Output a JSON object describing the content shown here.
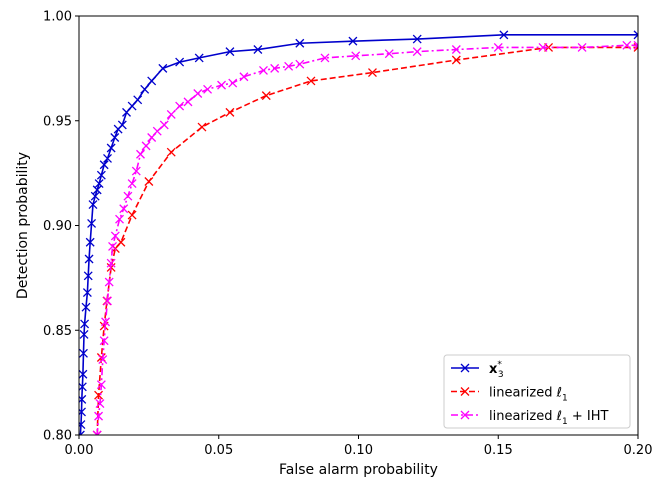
{
  "chart_data": {
    "type": "line",
    "xlabel": "False alarm probability",
    "ylabel": "Detection probability",
    "xlim": [
      0,
      0.2
    ],
    "ylim": [
      0.8,
      1.0
    ],
    "xticks": [
      "0.00",
      "0.05",
      "0.10",
      "0.15",
      "0.20"
    ],
    "yticks": [
      "0.80",
      "0.85",
      "0.90",
      "0.95",
      "1.00"
    ],
    "grid": false,
    "legend_position": "bottom-right",
    "series": [
      {
        "name": "x₃*",
        "legend_main": "x",
        "legend_sub": "3",
        "legend_sup": "*",
        "color": "#0000cc",
        "linestyle": "solid",
        "marker": "x",
        "points": [
          [
            0.0005,
            0.8
          ],
          [
            0.0007,
            0.805
          ],
          [
            0.0009,
            0.811
          ],
          [
            0.001,
            0.817
          ],
          [
            0.0012,
            0.823
          ],
          [
            0.0014,
            0.829
          ],
          [
            0.0016,
            0.839
          ],
          [
            0.0018,
            0.848
          ],
          [
            0.002,
            0.853
          ],
          [
            0.0025,
            0.861
          ],
          [
            0.003,
            0.868
          ],
          [
            0.0033,
            0.876
          ],
          [
            0.0036,
            0.884
          ],
          [
            0.004,
            0.892
          ],
          [
            0.0045,
            0.901
          ],
          [
            0.005,
            0.91
          ],
          [
            0.0058,
            0.914
          ],
          [
            0.0065,
            0.917
          ],
          [
            0.0072,
            0.92
          ],
          [
            0.008,
            0.924
          ],
          [
            0.009,
            0.929
          ],
          [
            0.0102,
            0.932
          ],
          [
            0.0115,
            0.937
          ],
          [
            0.0128,
            0.942
          ],
          [
            0.014,
            0.946
          ],
          [
            0.0155,
            0.948
          ],
          [
            0.017,
            0.954
          ],
          [
            0.019,
            0.957
          ],
          [
            0.021,
            0.96
          ],
          [
            0.0235,
            0.965
          ],
          [
            0.026,
            0.969
          ],
          [
            0.03,
            0.975
          ],
          [
            0.036,
            0.978
          ],
          [
            0.043,
            0.98
          ],
          [
            0.054,
            0.983
          ],
          [
            0.064,
            0.984
          ],
          [
            0.079,
            0.987
          ],
          [
            0.098,
            0.988
          ],
          [
            0.121,
            0.989
          ],
          [
            0.152,
            0.991
          ],
          [
            0.2,
            0.991
          ]
        ]
      },
      {
        "name": "linearized ℓ1",
        "legend_main": "linearized ℓ",
        "legend_sub": "1",
        "legend_suffix": "",
        "color": "#ff0000",
        "linestyle": "dashed",
        "marker": "x",
        "points": [
          [
            0.0065,
            0.8
          ],
          [
            0.007,
            0.819
          ],
          [
            0.008,
            0.837
          ],
          [
            0.009,
            0.852
          ],
          [
            0.01,
            0.864
          ],
          [
            0.0115,
            0.88
          ],
          [
            0.013,
            0.889
          ],
          [
            0.015,
            0.892
          ],
          [
            0.019,
            0.905
          ],
          [
            0.025,
            0.921
          ],
          [
            0.033,
            0.935
          ],
          [
            0.044,
            0.947
          ],
          [
            0.054,
            0.954
          ],
          [
            0.067,
            0.962
          ],
          [
            0.083,
            0.969
          ],
          [
            0.105,
            0.973
          ],
          [
            0.135,
            0.979
          ],
          [
            0.168,
            0.985
          ],
          [
            0.2,
            0.985
          ]
        ]
      },
      {
        "name": "linearized ℓ1 + IHT",
        "legend_main": "linearized ℓ",
        "legend_sub": "1",
        "legend_suffix": " + IHT",
        "color": "#ff00ff",
        "linestyle": "dashdot",
        "marker": "x",
        "points": [
          [
            0.0065,
            0.8
          ],
          [
            0.007,
            0.809
          ],
          [
            0.0075,
            0.815
          ],
          [
            0.008,
            0.824
          ],
          [
            0.0085,
            0.836
          ],
          [
            0.009,
            0.845
          ],
          [
            0.0095,
            0.854
          ],
          [
            0.0102,
            0.864
          ],
          [
            0.0108,
            0.873
          ],
          [
            0.0115,
            0.882
          ],
          [
            0.012,
            0.89
          ],
          [
            0.013,
            0.895
          ],
          [
            0.0145,
            0.903
          ],
          [
            0.016,
            0.908
          ],
          [
            0.0175,
            0.914
          ],
          [
            0.019,
            0.92
          ],
          [
            0.0205,
            0.926
          ],
          [
            0.022,
            0.934
          ],
          [
            0.024,
            0.938
          ],
          [
            0.026,
            0.942
          ],
          [
            0.028,
            0.945
          ],
          [
            0.0305,
            0.948
          ],
          [
            0.033,
            0.953
          ],
          [
            0.036,
            0.957
          ],
          [
            0.039,
            0.959
          ],
          [
            0.0425,
            0.963
          ],
          [
            0.046,
            0.965
          ],
          [
            0.051,
            0.967
          ],
          [
            0.055,
            0.968
          ],
          [
            0.059,
            0.971
          ],
          [
            0.066,
            0.974
          ],
          [
            0.07,
            0.975
          ],
          [
            0.075,
            0.976
          ],
          [
            0.079,
            0.977
          ],
          [
            0.088,
            0.98
          ],
          [
            0.099,
            0.981
          ],
          [
            0.111,
            0.982
          ],
          [
            0.121,
            0.983
          ],
          [
            0.135,
            0.984
          ],
          [
            0.15,
            0.985
          ],
          [
            0.166,
            0.985
          ],
          [
            0.18,
            0.985
          ],
          [
            0.196,
            0.986
          ],
          [
            0.2,
            0.986
          ]
        ]
      }
    ]
  }
}
